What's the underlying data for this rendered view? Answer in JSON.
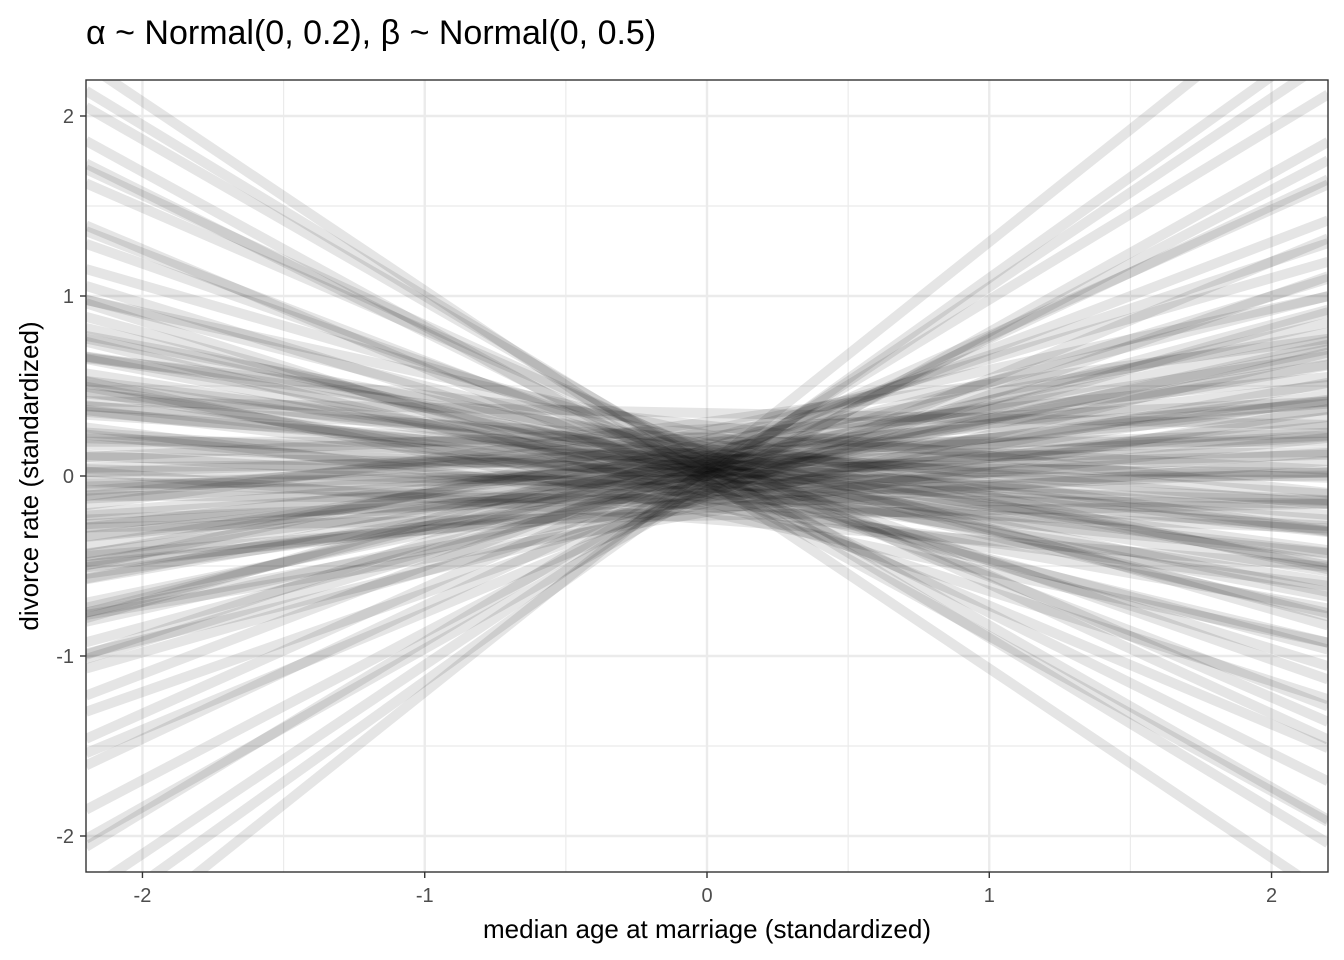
{
  "chart_data": {
    "type": "line",
    "title": "α ~ Normal(0, 0.2), β ~ Normal(0, 0.5)",
    "xlabel": "median age at marriage (standardized)",
    "ylabel": "divorce rate (standardized)",
    "xlim": [
      -2.2,
      2.2
    ],
    "ylim": [
      -2.2,
      2.2
    ],
    "xticks": [
      -2,
      -1,
      0,
      1,
      2
    ],
    "yticks": [
      -2,
      -1,
      0,
      1,
      2
    ],
    "xtick_labels": [
      "-2",
      "-1",
      "0",
      "1",
      "2"
    ],
    "ytick_labels": [
      "-2",
      "-1",
      "0",
      "1",
      "2"
    ],
    "grid": true,
    "legend": "none",
    "line_color": "#000000",
    "line_opacity": 0.1,
    "n_lines": 100,
    "prior_lines": [
      {
        "a": 0.03,
        "b": 0.95
      },
      {
        "a": -0.02,
        "b": 1.12
      },
      {
        "a": 0.05,
        "b": 1.25
      },
      {
        "a": 0.0,
        "b": 1.05
      },
      {
        "a": 0.08,
        "b": 0.7
      },
      {
        "a": 0.02,
        "b": 0.74
      },
      {
        "a": -0.05,
        "b": 0.82
      },
      {
        "a": 0.1,
        "b": 0.6
      },
      {
        "a": -0.1,
        "b": 0.55
      },
      {
        "a": 0.15,
        "b": 0.52
      },
      {
        "a": 0.04,
        "b": 0.48
      },
      {
        "a": -0.08,
        "b": 0.45
      },
      {
        "a": 0.2,
        "b": 0.45
      },
      {
        "a": 0.0,
        "b": 0.42
      },
      {
        "a": 0.12,
        "b": 0.4
      },
      {
        "a": -0.15,
        "b": 0.38
      },
      {
        "a": 0.06,
        "b": 0.36
      },
      {
        "a": -0.04,
        "b": 0.35
      },
      {
        "a": 0.25,
        "b": 0.34
      },
      {
        "a": 0.0,
        "b": 0.32
      },
      {
        "a": 0.09,
        "b": 0.3
      },
      {
        "a": -0.12,
        "b": 0.29
      },
      {
        "a": 0.18,
        "b": 0.28
      },
      {
        "a": 0.02,
        "b": 0.27
      },
      {
        "a": -0.2,
        "b": 0.26
      },
      {
        "a": 0.07,
        "b": 0.25
      },
      {
        "a": 0.14,
        "b": 0.24
      },
      {
        "a": -0.06,
        "b": 0.22
      },
      {
        "a": 0.3,
        "b": 0.21
      },
      {
        "a": 0.01,
        "b": 0.2
      },
      {
        "a": -0.09,
        "b": 0.19
      },
      {
        "a": 0.11,
        "b": 0.18
      },
      {
        "a": 0.04,
        "b": 0.17
      },
      {
        "a": -0.14,
        "b": 0.16
      },
      {
        "a": 0.22,
        "b": 0.15
      },
      {
        "a": -0.03,
        "b": 0.14
      },
      {
        "a": 0.08,
        "b": 0.13
      },
      {
        "a": -0.18,
        "b": 0.12
      },
      {
        "a": 0.16,
        "b": 0.11
      },
      {
        "a": 0.0,
        "b": 0.1
      },
      {
        "a": -0.07,
        "b": 0.09
      },
      {
        "a": 0.05,
        "b": 0.08
      },
      {
        "a": 0.26,
        "b": 0.07
      },
      {
        "a": -0.11,
        "b": 0.06
      },
      {
        "a": 0.13,
        "b": 0.05
      },
      {
        "a": 0.03,
        "b": 0.04
      },
      {
        "a": -0.22,
        "b": 0.03
      },
      {
        "a": 0.09,
        "b": 0.02
      },
      {
        "a": -0.02,
        "b": 0.01
      },
      {
        "a": 0.19,
        "b": 0.0
      },
      {
        "a": -0.13,
        "b": -0.01
      },
      {
        "a": 0.06,
        "b": -0.02
      },
      {
        "a": 0.35,
        "b": -0.03
      },
      {
        "a": -0.05,
        "b": -0.04
      },
      {
        "a": 0.1,
        "b": -0.05
      },
      {
        "a": -0.16,
        "b": -0.06
      },
      {
        "a": 0.02,
        "b": -0.07
      },
      {
        "a": 0.21,
        "b": -0.08
      },
      {
        "a": -0.08,
        "b": -0.09
      },
      {
        "a": 0.12,
        "b": -0.1
      },
      {
        "a": 0.0,
        "b": -0.11
      },
      {
        "a": -0.24,
        "b": -0.12
      },
      {
        "a": 0.07,
        "b": -0.13
      },
      {
        "a": 0.15,
        "b": -0.14
      },
      {
        "a": -0.1,
        "b": -0.15
      },
      {
        "a": 0.04,
        "b": -0.16
      },
      {
        "a": 0.28,
        "b": -0.17
      },
      {
        "a": -0.03,
        "b": -0.18
      },
      {
        "a": 0.11,
        "b": -0.19
      },
      {
        "a": -0.17,
        "b": -0.2
      },
      {
        "a": 0.05,
        "b": -0.21
      },
      {
        "a": 0.18,
        "b": -0.22
      },
      {
        "a": -0.06,
        "b": -0.24
      },
      {
        "a": 0.02,
        "b": -0.25
      },
      {
        "a": 0.09,
        "b": -0.26
      },
      {
        "a": -0.12,
        "b": -0.28
      },
      {
        "a": 0.14,
        "b": -0.29
      },
      {
        "a": -0.01,
        "b": -0.3
      },
      {
        "a": 0.06,
        "b": -0.32
      },
      {
        "a": -0.2,
        "b": -0.33
      },
      {
        "a": 0.23,
        "b": -0.34
      },
      {
        "a": 0.03,
        "b": -0.36
      },
      {
        "a": -0.09,
        "b": -0.38
      },
      {
        "a": 0.1,
        "b": -0.4
      },
      {
        "a": -0.04,
        "b": -0.42
      },
      {
        "a": 0.16,
        "b": -0.45
      },
      {
        "a": 0.0,
        "b": -0.48
      },
      {
        "a": -0.14,
        "b": -0.5
      },
      {
        "a": 0.08,
        "b": -0.55
      },
      {
        "a": 0.04,
        "b": -0.6
      },
      {
        "a": -0.06,
        "b": -0.66
      },
      {
        "a": 0.12,
        "b": -0.72
      },
      {
        "a": 0.02,
        "b": -0.78
      },
      {
        "a": -0.03,
        "b": -0.86
      },
      {
        "a": 0.05,
        "b": -0.95
      },
      {
        "a": -0.02,
        "b": -1.05
      },
      {
        "a": 0.07,
        "b": -0.9
      },
      {
        "a": -0.08,
        "b": 0.88
      },
      {
        "a": 0.13,
        "b": -0.68
      },
      {
        "a": -0.11,
        "b": 0.65
      }
    ]
  }
}
